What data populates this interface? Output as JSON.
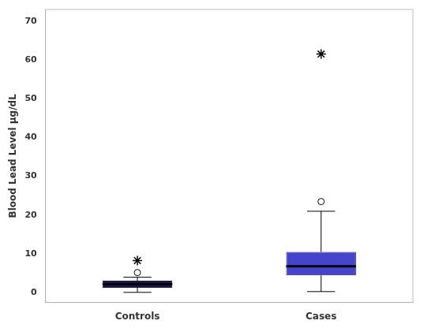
{
  "chart_data": {
    "type": "box",
    "categories": [
      "Controls",
      "Cases"
    ],
    "ylabel": "Blood Lead Level µg/dL",
    "ylim": [
      -2.5,
      73
    ],
    "yticks": [
      0,
      10,
      20,
      30,
      40,
      50,
      60,
      70
    ],
    "grid": false,
    "colors": [
      "#1a1a4a",
      "#4444cc"
    ],
    "edge_colors": [
      "#1a1a4a",
      "#222288"
    ],
    "q1": [
      1.3,
      4.5
    ],
    "median": [
      2.2,
      6.8
    ],
    "q3": [
      3.1,
      10.5
    ],
    "whisker_low": [
      0.1,
      0.3
    ],
    "whisker_high": [
      4.0,
      21.0
    ],
    "outliers": [
      {
        "marker": "circle",
        "values": [
          5.2,
          23.5
        ]
      },
      {
        "marker": "star",
        "values": [
          8.3,
          61.5
        ]
      }
    ]
  }
}
